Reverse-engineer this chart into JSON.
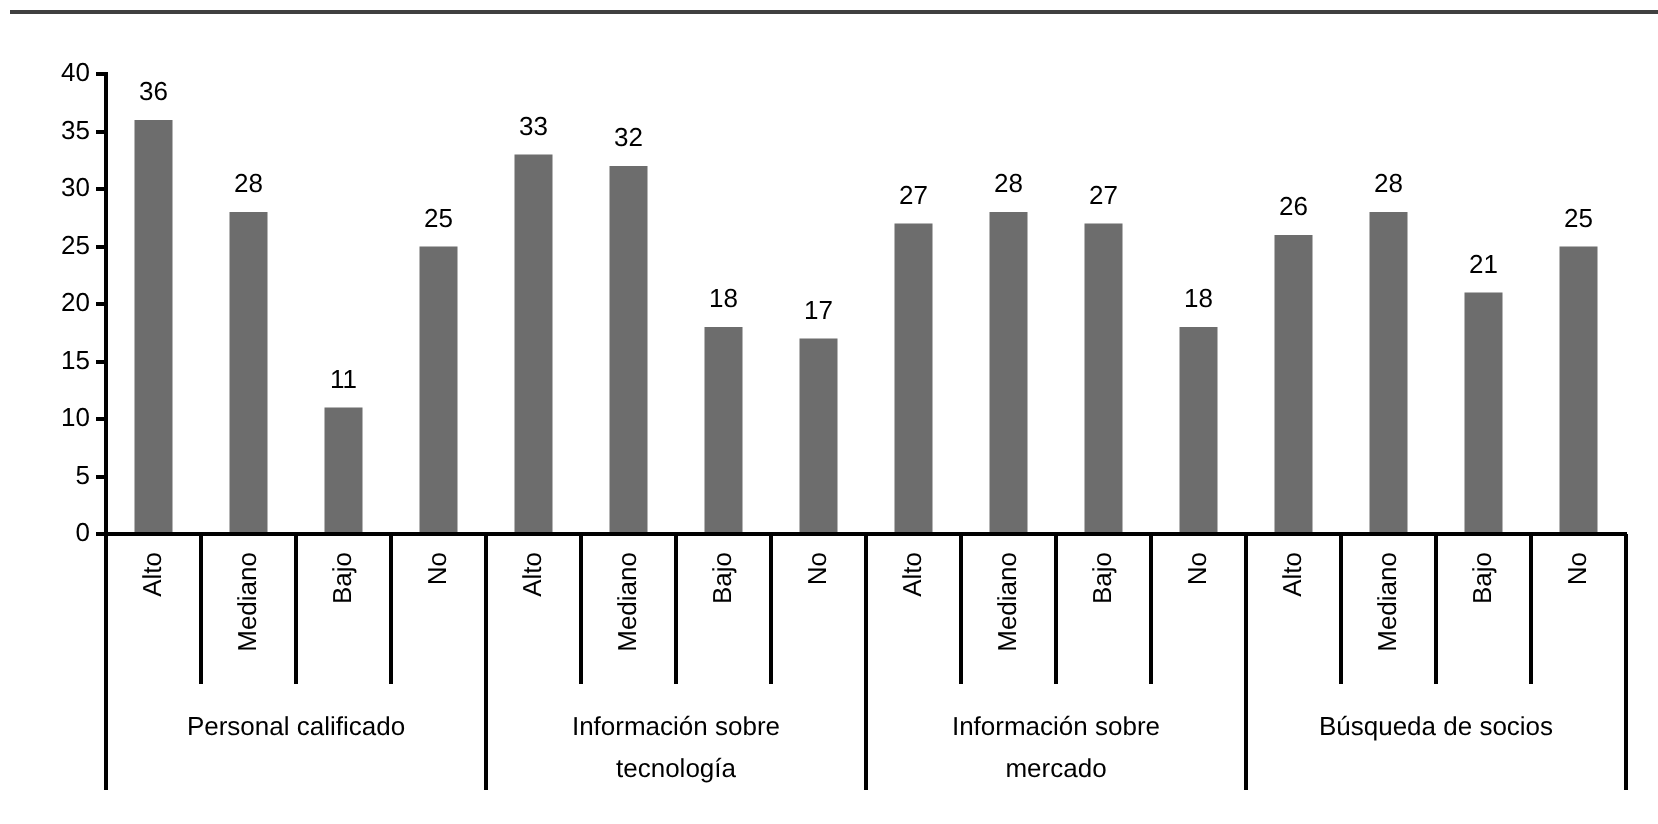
{
  "chart_data": {
    "type": "bar",
    "categories": [
      "Alto",
      "Mediano",
      "Bajo",
      "No",
      "Alto",
      "Mediano",
      "Bajo",
      "No",
      "Alto",
      "Mediano",
      "Bajo",
      "No",
      "Alto",
      "Mediano",
      "Bajo",
      "No"
    ],
    "values": [
      36,
      28,
      11,
      25,
      33,
      32,
      18,
      17,
      27,
      28,
      27,
      18,
      26,
      28,
      21,
      25
    ],
    "color": "#6d6d6d",
    "ylim": [
      0,
      40
    ],
    "yticks": [
      0,
      5,
      10,
      15,
      20,
      25,
      30,
      35,
      40
    ],
    "data_labels": true,
    "annotations": [
      "Personal calificado",
      "Información sobre tecnología",
      "Información sobre mercado",
      "Búsqueda de socios"
    ]
  }
}
